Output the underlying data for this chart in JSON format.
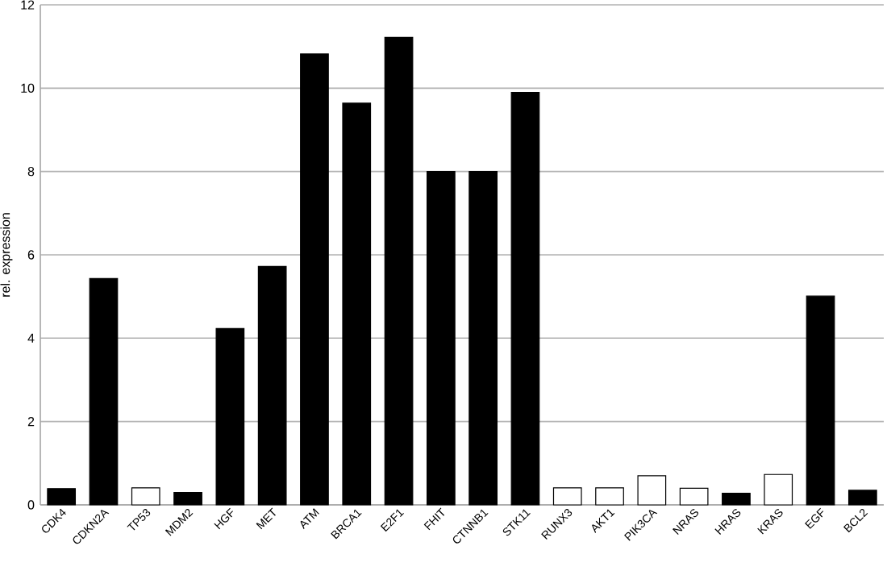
{
  "chart_data": {
    "type": "bar",
    "ylabel": "rel. expression",
    "categories": [
      "CDK4",
      "CDKN2A",
      "TP53",
      "MDM2",
      "HGF",
      "MET",
      "ATM",
      "BRCA1",
      "E2F1",
      "FHIT",
      "CTNNB1",
      "STK11",
      "RUNX3",
      "AKT1",
      "PIK3CA",
      "NRAS",
      "HRAS",
      "KRAS",
      "EGF",
      "BCL2"
    ],
    "values": [
      0.39,
      5.43,
      0.41,
      0.3,
      4.23,
      5.72,
      10.82,
      9.64,
      11.22,
      8.0,
      8.0,
      9.9,
      0.41,
      0.41,
      0.7,
      0.4,
      0.28,
      0.73,
      5.01,
      0.35
    ],
    "colors": [
      "#000000",
      "#000000",
      "#ffffff",
      "#000000",
      "#000000",
      "#000000",
      "#000000",
      "#000000",
      "#000000",
      "#000000",
      "#000000",
      "#000000",
      "#ffffff",
      "#ffffff",
      "#ffffff",
      "#ffffff",
      "#000000",
      "#ffffff",
      "#000000",
      "#000000"
    ],
    "ylim": [
      0,
      12
    ],
    "yticks": [
      0,
      2,
      4,
      6,
      8,
      10,
      12
    ],
    "grid": "y"
  }
}
